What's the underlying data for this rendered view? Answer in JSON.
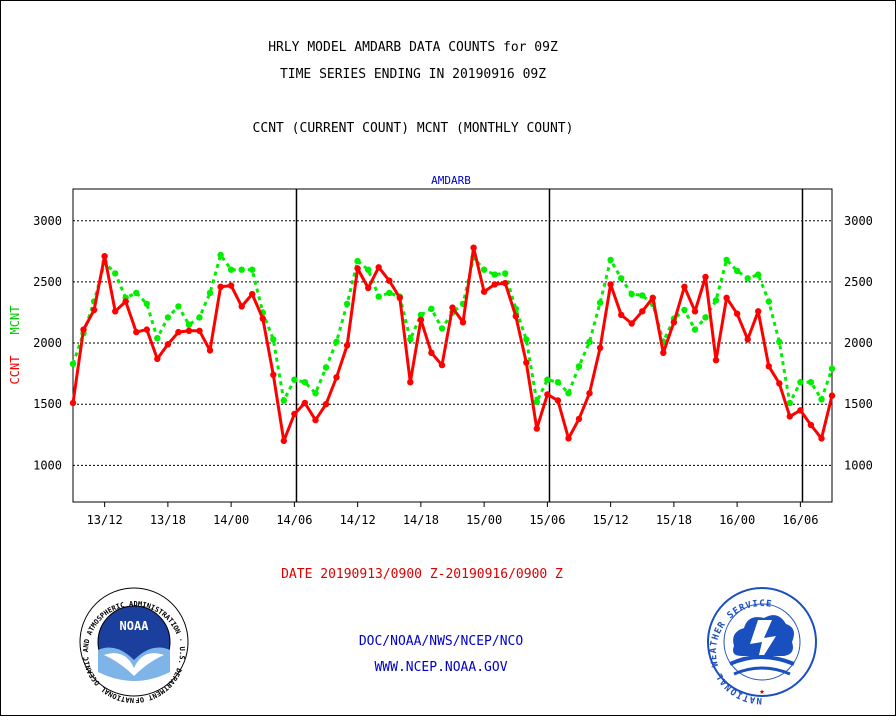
{
  "header": {
    "title_line1": "HRLY MODEL AMDARB DATA COUNTS for 09Z",
    "title_line2": "TIME SERIES ENDING IN 20190916 09Z",
    "subtitle": "CCNT (CURRENT COUNT) MCNT (MONTHLY COUNT)"
  },
  "footer": {
    "date_range": "DATE 20190913/0900 Z-20190916/0900 Z",
    "org": "DOC/NOAA/NWS/NCEP/NCO",
    "url": "WWW.NCEP.NOAA.GOV"
  },
  "logos": {
    "noaa": {
      "center_text": "NOAA",
      "ring_text": "NATIONAL OCEANIC AND ATMOSPHERIC ADMINISTRATION · U.S. DEPARTMENT OF COMMERCE ·"
    },
    "nws": {
      "ring_text": "NATIONAL WEATHER SERVICE"
    }
  },
  "colors": {
    "ccnt": "#ff0000",
    "mcnt": "#00ee00",
    "plot_label": "#0000cc",
    "text": "#000000",
    "date_text": "#dd0000",
    "footer_text": "#0000cc"
  },
  "chart_data": {
    "type": "line",
    "title": "AMDARB",
    "ylabel_ccnt": "CCNT",
    "ylabel_mcnt": "MCNT",
    "ylim": [
      700,
      3260
    ],
    "y_ticks": [
      1000,
      1500,
      2000,
      2500,
      3000
    ],
    "y_tick_labels": [
      "1000",
      "1500",
      "2000",
      "2500",
      "3000"
    ],
    "grid": true,
    "x_ticks": [
      {
        "label": "13/12",
        "hour": 3
      },
      {
        "label": "13/18",
        "hour": 9
      },
      {
        "label": "14/00",
        "hour": 15
      },
      {
        "label": "14/06",
        "hour": 21
      },
      {
        "label": "14/12",
        "hour": 27
      },
      {
        "label": "14/18",
        "hour": 33
      },
      {
        "label": "15/00",
        "hour": 39
      },
      {
        "label": "15/06",
        "hour": 45
      },
      {
        "label": "15/12",
        "hour": 51
      },
      {
        "label": "15/18",
        "hour": 57
      },
      {
        "label": "16/00",
        "hour": 63
      },
      {
        "label": "16/06",
        "hour": 69
      }
    ],
    "x_range": [
      0,
      72
    ],
    "day_dividers": [
      21.2,
      45.2,
      69.2
    ],
    "series": [
      {
        "name": "CCNT",
        "values": [
          1510,
          2110,
          2270,
          2710,
          2260,
          2340,
          2090,
          2110,
          1870,
          1990,
          2090,
          2100,
          2100,
          1940,
          2460,
          2470,
          2300,
          2400,
          2200,
          1740,
          1200,
          1420,
          1510,
          1370,
          1500,
          1720,
          1980,
          2610,
          2450,
          2620,
          2510,
          2370,
          1680,
          2190,
          1920,
          1820,
          2290,
          2170,
          2780,
          2420,
          2480,
          2490,
          2220,
          1840,
          1300,
          1580,
          1530,
          1220,
          1380,
          1590,
          1960,
          2480,
          2230,
          2160,
          2260,
          2370,
          1920,
          2170,
          2460,
          2260,
          2540,
          1860,
          2370,
          2240,
          2030,
          2260,
          1810,
          1670,
          1400,
          1450,
          1330,
          1220,
          1570
        ]
      },
      {
        "name": "MCNT",
        "values": [
          1830,
          2080,
          2340,
          2660,
          2570,
          2370,
          2410,
          2320,
          2040,
          2210,
          2300,
          2150,
          2210,
          2410,
          2720,
          2600,
          2600,
          2600,
          2250,
          2030,
          1530,
          1700,
          1680,
          1590,
          1800,
          2010,
          2320,
          2670,
          2600,
          2380,
          2410,
          2380,
          2030,
          2230,
          2280,
          2120,
          2250,
          2320,
          2700,
          2600,
          2560,
          2570,
          2280,
          2030,
          1520,
          1700,
          1680,
          1590,
          1810,
          2010,
          2330,
          2680,
          2530,
          2400,
          2390,
          2320,
          2010,
          2200,
          2270,
          2110,
          2210,
          2350,
          2680,
          2590,
          2530,
          2560,
          2340,
          2010,
          1510,
          1680,
          1680,
          1540,
          1790
        ]
      }
    ]
  }
}
